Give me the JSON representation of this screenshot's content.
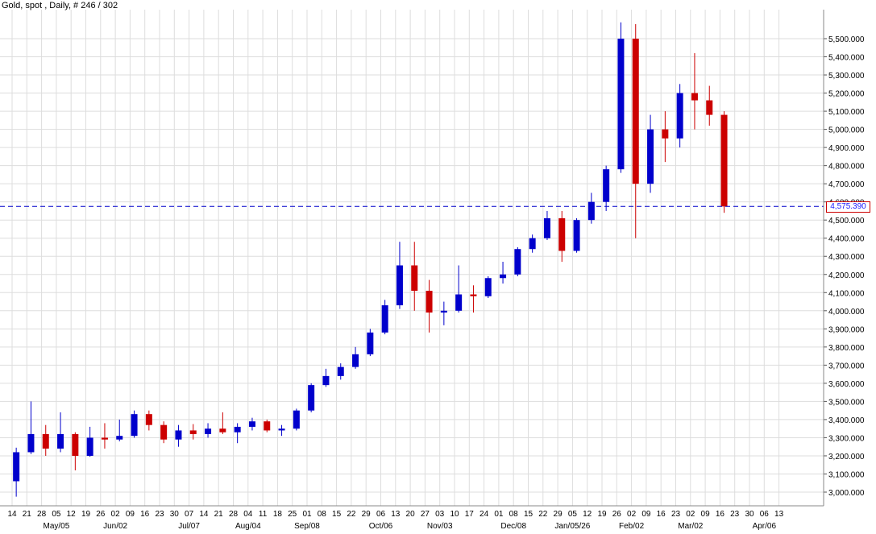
{
  "chart_data": {
    "type": "candlestick",
    "title": "Gold, spot , Daily, # 246 / 302",
    "ylim": [
      2930,
      5600
    ],
    "grid": true,
    "current_price": 4575.39,
    "current_price_label": "4,575.390",
    "y_ticks": [
      3000,
      3100,
      3200,
      3300,
      3400,
      3500,
      3600,
      3700,
      3800,
      3900,
      4000,
      4100,
      4200,
      4300,
      4400,
      4500,
      4600,
      4700,
      4800,
      4900,
      5000,
      5100,
      5200,
      5300,
      5400,
      5500
    ],
    "y_tick_labels": [
      "3,000.000",
      "3,100.000",
      "3,200.000",
      "3,300.000",
      "3,400.000",
      "3,500.000",
      "3,600.000",
      "3,700.000",
      "3,800.000",
      "3,900.000",
      "4,000.000",
      "4,100.000",
      "4,200.000",
      "4,300.000",
      "4,400.000",
      "4,500.000",
      "4,600.000",
      "4,700.000",
      "4,800.000",
      "4,900.000",
      "5,000.000",
      "5,100.000",
      "5,200.000",
      "5,300.000",
      "5,400.000",
      "5,500.000"
    ],
    "x_day_labels": [
      "14",
      "21",
      "28",
      "05",
      "12",
      "19",
      "26",
      "02",
      "09",
      "16",
      "23",
      "30",
      "07",
      "14",
      "21",
      "28",
      "04",
      "11",
      "18",
      "25",
      "01",
      "08",
      "15",
      "22",
      "29",
      "06",
      "13",
      "20",
      "27",
      "03",
      "10",
      "17",
      "24",
      "01",
      "08",
      "15",
      "22",
      "29",
      "05",
      "12",
      "19",
      "26",
      "02",
      "09",
      "16",
      "23",
      "02",
      "09",
      "16",
      "23",
      "30",
      "06",
      "13"
    ],
    "x_month_labels": [
      "May/05",
      "Jun/02",
      "Jul/07",
      "Aug/04",
      "Sep/08",
      "Oct/06",
      "Nov/03",
      "Dec/08",
      "Jan/05/26",
      "Feb/02",
      "Mar/02",
      "Apr/06"
    ],
    "weeks": [
      {
        "label": "Apr 14",
        "open": 3060,
        "high": 3245,
        "low": 2975,
        "close": 3220
      },
      {
        "label": "Apr 21",
        "open": 3220,
        "high": 3500,
        "low": 3210,
        "close": 3320
      },
      {
        "label": "Apr 28",
        "open": 3320,
        "high": 3370,
        "low": 3200,
        "close": 3240
      },
      {
        "label": "May 05",
        "open": 3240,
        "high": 3440,
        "low": 3220,
        "close": 3320
      },
      {
        "label": "May 12",
        "open": 3320,
        "high": 3330,
        "low": 3120,
        "close": 3200
      },
      {
        "label": "May 19",
        "open": 3200,
        "high": 3360,
        "low": 3195,
        "close": 3300
      },
      {
        "label": "May 26",
        "open": 3300,
        "high": 3380,
        "low": 3240,
        "close": 3290
      },
      {
        "label": "Jun 02",
        "open": 3290,
        "high": 3400,
        "low": 3280,
        "close": 3310
      },
      {
        "label": "Jun 09",
        "open": 3310,
        "high": 3450,
        "low": 3300,
        "close": 3430
      },
      {
        "label": "Jun 16",
        "open": 3430,
        "high": 3450,
        "low": 3340,
        "close": 3370
      },
      {
        "label": "Jun 23",
        "open": 3370,
        "high": 3390,
        "low": 3270,
        "close": 3290
      },
      {
        "label": "Jun 30",
        "open": 3290,
        "high": 3370,
        "low": 3250,
        "close": 3340
      },
      {
        "label": "Jul 07",
        "open": 3340,
        "high": 3375,
        "low": 3290,
        "close": 3320
      },
      {
        "label": "Jul 14",
        "open": 3320,
        "high": 3380,
        "low": 3300,
        "close": 3350
      },
      {
        "label": "Jul 21",
        "open": 3350,
        "high": 3440,
        "low": 3320,
        "close": 3330
      },
      {
        "label": "Jul 28",
        "open": 3330,
        "high": 3380,
        "low": 3270,
        "close": 3360
      },
      {
        "label": "Aug 04",
        "open": 3360,
        "high": 3410,
        "low": 3340,
        "close": 3390
      },
      {
        "label": "Aug 11",
        "open": 3390,
        "high": 3400,
        "low": 3330,
        "close": 3340
      },
      {
        "label": "Aug 18",
        "open": 3340,
        "high": 3370,
        "low": 3310,
        "close": 3350
      },
      {
        "label": "Aug 25",
        "open": 3350,
        "high": 3460,
        "low": 3340,
        "close": 3450
      },
      {
        "label": "Sep 01",
        "open": 3450,
        "high": 3600,
        "low": 3440,
        "close": 3590
      },
      {
        "label": "Sep 08",
        "open": 3590,
        "high": 3680,
        "low": 3580,
        "close": 3640
      },
      {
        "label": "Sep 15",
        "open": 3640,
        "high": 3710,
        "low": 3620,
        "close": 3690
      },
      {
        "label": "Sep 22",
        "open": 3690,
        "high": 3800,
        "low": 3680,
        "close": 3760
      },
      {
        "label": "Sep 29",
        "open": 3760,
        "high": 3900,
        "low": 3750,
        "close": 3880
      },
      {
        "label": "Oct 06",
        "open": 3880,
        "high": 4060,
        "low": 3870,
        "close": 4030
      },
      {
        "label": "Oct 13",
        "open": 4030,
        "high": 4380,
        "low": 4010,
        "close": 4250
      },
      {
        "label": "Oct 20",
        "open": 4250,
        "high": 4380,
        "low": 4000,
        "close": 4110
      },
      {
        "label": "Oct 27",
        "open": 4110,
        "high": 4170,
        "low": 3880,
        "close": 3990
      },
      {
        "label": "Nov 03",
        "open": 3990,
        "high": 4050,
        "low": 3920,
        "close": 4000
      },
      {
        "label": "Nov 10",
        "open": 4000,
        "high": 4250,
        "low": 3990,
        "close": 4090
      },
      {
        "label": "Nov 17",
        "open": 4090,
        "high": 4140,
        "low": 3990,
        "close": 4080
      },
      {
        "label": "Nov 24",
        "open": 4080,
        "high": 4190,
        "low": 4070,
        "close": 4180
      },
      {
        "label": "Dec 01",
        "open": 4180,
        "high": 4270,
        "low": 4150,
        "close": 4200
      },
      {
        "label": "Dec 08",
        "open": 4200,
        "high": 4350,
        "low": 4190,
        "close": 4340
      },
      {
        "label": "Dec 15",
        "open": 4340,
        "high": 4420,
        "low": 4320,
        "close": 4400
      },
      {
        "label": "Dec 22",
        "open": 4400,
        "high": 4550,
        "low": 4390,
        "close": 4510
      },
      {
        "label": "Dec 29",
        "open": 4510,
        "high": 4550,
        "low": 4270,
        "close": 4330
      },
      {
        "label": "Jan 05",
        "open": 4330,
        "high": 4510,
        "low": 4320,
        "close": 4500
      },
      {
        "label": "Jan 12",
        "open": 4500,
        "high": 4650,
        "low": 4480,
        "close": 4600
      },
      {
        "label": "Jan 19",
        "open": 4600,
        "high": 4800,
        "low": 4550,
        "close": 4780
      },
      {
        "label": "Jan 26",
        "open": 4780,
        "high": 5590,
        "low": 4760,
        "close": 5500
      },
      {
        "label": "Feb 02",
        "open": 5500,
        "high": 5580,
        "low": 4400,
        "close": 4700
      },
      {
        "label": "Feb 09",
        "open": 4700,
        "high": 5080,
        "low": 4650,
        "close": 5000
      },
      {
        "label": "Feb 16",
        "open": 5000,
        "high": 5100,
        "low": 4820,
        "close": 4950
      },
      {
        "label": "Feb 23",
        "open": 4950,
        "high": 5250,
        "low": 4900,
        "close": 5200
      },
      {
        "label": "Mar 02",
        "open": 5200,
        "high": 5420,
        "low": 5000,
        "close": 5160
      },
      {
        "label": "Mar 09",
        "open": 5160,
        "high": 5240,
        "low": 5020,
        "close": 5080
      },
      {
        "label": "Mar 16",
        "open": 5080,
        "high": 5100,
        "low": 4540,
        "close": 4575
      }
    ]
  },
  "colors": {
    "up": "#0000cc",
    "down": "#cc0000",
    "grid": "#dddddd",
    "price_line": "#0000cc"
  }
}
